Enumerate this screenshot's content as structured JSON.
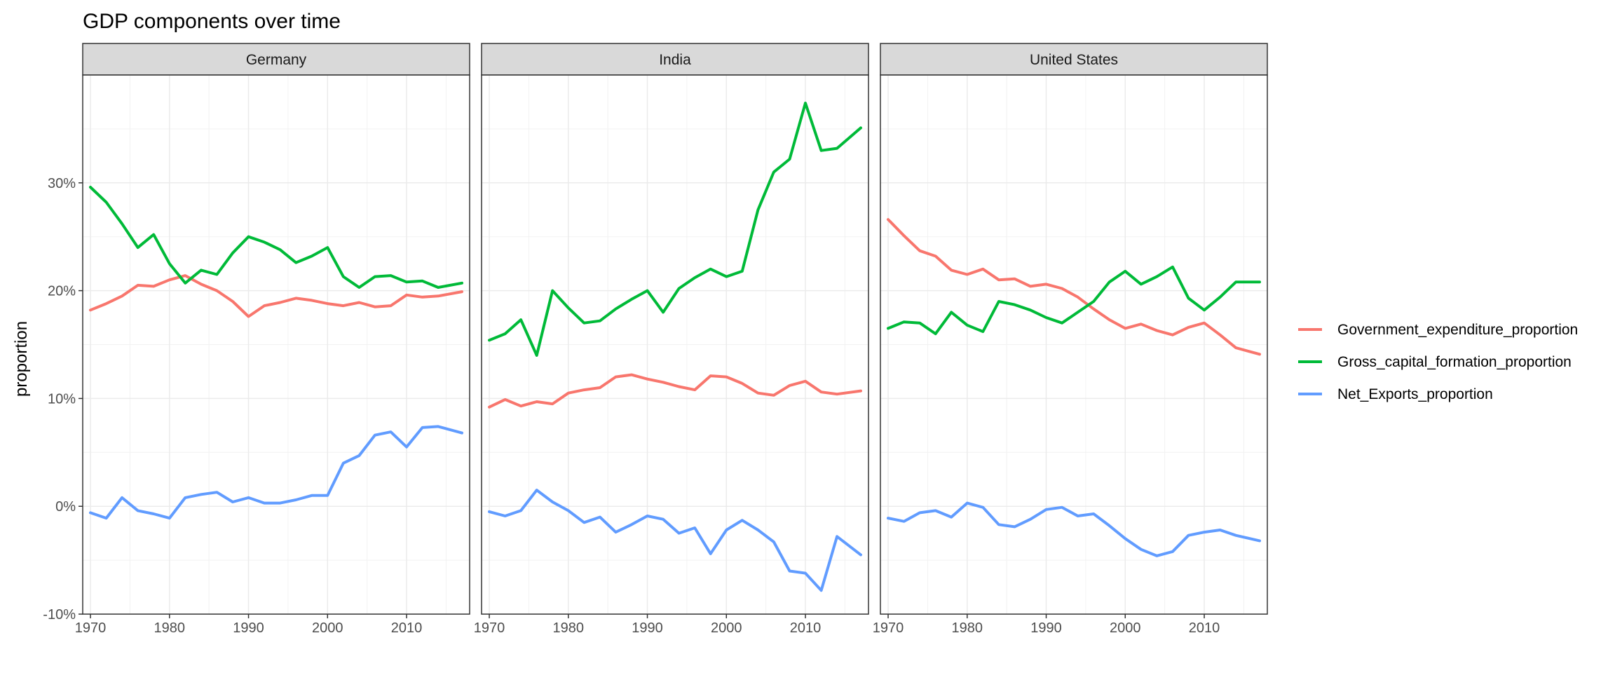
{
  "chart_data": {
    "type": "line",
    "title": "GDP components over time",
    "xlabel": "",
    "ylabel": "proportion",
    "xlim": [
      1970,
      2017
    ],
    "ylim": [
      -0.1,
      0.4
    ],
    "x_ticks": [
      1970,
      1980,
      1990,
      2000,
      2010
    ],
    "x_tick_labels": [
      "1970",
      "1980",
      "1990",
      "2000",
      "2010"
    ],
    "y_ticks": [
      -0.1,
      0,
      0.1,
      0.2,
      0.3
    ],
    "y_tick_labels": [
      "-10%",
      "0%",
      "10%",
      "20%",
      "30%"
    ],
    "grid": true,
    "legend_position": "right",
    "series_colors": {
      "Government_expenditure_proportion": "#F8766D",
      "Gross_capital_formation_proportion": "#00BA38",
      "Net_Exports_proportion": "#619CFF"
    },
    "legend": [
      {
        "name": "Government_expenditure_proportion",
        "color": "#F8766D"
      },
      {
        "name": "Gross_capital_formation_proportion",
        "color": "#00BA38"
      },
      {
        "name": "Net_Exports_proportion",
        "color": "#619CFF"
      }
    ],
    "facets": [
      {
        "name": "Germany",
        "series": [
          {
            "name": "Government_expenditure_proportion",
            "x": [
              1970,
              1972,
              1974,
              1976,
              1978,
              1980,
              1982,
              1984,
              1986,
              1988,
              1990,
              1992,
              1994,
              1996,
              1998,
              2000,
              2002,
              2004,
              2006,
              2008,
              2010,
              2012,
              2014,
              2017
            ],
            "values": [
              0.182,
              0.188,
              0.195,
              0.205,
              0.204,
              0.21,
              0.214,
              0.206,
              0.2,
              0.19,
              0.176,
              0.186,
              0.189,
              0.193,
              0.191,
              0.188,
              0.186,
              0.189,
              0.185,
              0.186,
              0.196,
              0.194,
              0.195,
              0.199
            ]
          },
          {
            "name": "Gross_capital_formation_proportion",
            "x": [
              1970,
              1972,
              1974,
              1976,
              1978,
              1980,
              1982,
              1984,
              1986,
              1988,
              1990,
              1992,
              1994,
              1996,
              1998,
              2000,
              2002,
              2004,
              2006,
              2008,
              2010,
              2012,
              2014,
              2017
            ],
            "values": [
              0.296,
              0.282,
              0.262,
              0.24,
              0.252,
              0.225,
              0.207,
              0.219,
              0.215,
              0.235,
              0.25,
              0.245,
              0.238,
              0.226,
              0.232,
              0.24,
              0.213,
              0.203,
              0.213,
              0.214,
              0.208,
              0.209,
              0.203,
              0.207
            ]
          },
          {
            "name": "Net_Exports_proportion",
            "x": [
              1970,
              1972,
              1974,
              1976,
              1978,
              1980,
              1982,
              1984,
              1986,
              1988,
              1990,
              1992,
              1994,
              1996,
              1998,
              2000,
              2002,
              2004,
              2006,
              2008,
              2010,
              2012,
              2014,
              2017
            ],
            "values": [
              -0.006,
              -0.011,
              0.008,
              -0.004,
              -0.007,
              -0.011,
              0.008,
              0.011,
              0.013,
              0.004,
              0.008,
              0.003,
              0.003,
              0.006,
              0.01,
              0.01,
              0.04,
              0.047,
              0.066,
              0.069,
              0.055,
              0.073,
              0.074,
              0.068
            ]
          }
        ]
      },
      {
        "name": "India",
        "series": [
          {
            "name": "Government_expenditure_proportion",
            "x": [
              1970,
              1972,
              1974,
              1976,
              1978,
              1980,
              1982,
              1984,
              1986,
              1988,
              1990,
              1992,
              1994,
              1996,
              1998,
              2000,
              2002,
              2004,
              2006,
              2008,
              2010,
              2012,
              2014,
              2017
            ],
            "values": [
              0.092,
              0.099,
              0.093,
              0.097,
              0.095,
              0.105,
              0.108,
              0.11,
              0.12,
              0.122,
              0.118,
              0.115,
              0.111,
              0.108,
              0.121,
              0.12,
              0.114,
              0.105,
              0.103,
              0.112,
              0.116,
              0.106,
              0.104,
              0.107
            ]
          },
          {
            "name": "Gross_capital_formation_proportion",
            "x": [
              1970,
              1972,
              1974,
              1976,
              1978,
              1980,
              1982,
              1984,
              1986,
              1988,
              1990,
              1992,
              1994,
              1996,
              1998,
              2000,
              2002,
              2004,
              2006,
              2008,
              2010,
              2012,
              2014,
              2017
            ],
            "values": [
              0.154,
              0.16,
              0.173,
              0.14,
              0.2,
              0.184,
              0.17,
              0.172,
              0.183,
              0.192,
              0.2,
              0.18,
              0.202,
              0.212,
              0.22,
              0.213,
              0.218,
              0.275,
              0.31,
              0.322,
              0.374,
              0.33,
              0.332,
              0.351
            ]
          },
          {
            "name": "Net_Exports_proportion",
            "x": [
              1970,
              1972,
              1974,
              1976,
              1978,
              1980,
              1982,
              1984,
              1986,
              1988,
              1990,
              1992,
              1994,
              1996,
              1998,
              2000,
              2002,
              2004,
              2006,
              2008,
              2010,
              2012,
              2014,
              2017
            ],
            "values": [
              -0.005,
              -0.009,
              -0.004,
              0.015,
              0.004,
              -0.004,
              -0.015,
              -0.01,
              -0.024,
              -0.017,
              -0.009,
              -0.012,
              -0.025,
              -0.02,
              -0.044,
              -0.022,
              -0.013,
              -0.022,
              -0.033,
              -0.06,
              -0.062,
              -0.078,
              -0.028,
              -0.045
            ]
          }
        ]
      },
      {
        "name": "United States",
        "series": [
          {
            "name": "Government_expenditure_proportion",
            "x": [
              1970,
              1972,
              1974,
              1976,
              1978,
              1980,
              1982,
              1984,
              1986,
              1988,
              1990,
              1992,
              1994,
              1996,
              1998,
              2000,
              2002,
              2004,
              2006,
              2008,
              2010,
              2012,
              2014,
              2017
            ],
            "values": [
              0.266,
              0.251,
              0.237,
              0.232,
              0.219,
              0.215,
              0.22,
              0.21,
              0.211,
              0.204,
              0.206,
              0.202,
              0.194,
              0.183,
              0.173,
              0.165,
              0.169,
              0.163,
              0.159,
              0.166,
              0.17,
              0.159,
              0.147,
              0.141
            ]
          },
          {
            "name": "Gross_capital_formation_proportion",
            "x": [
              1970,
              1972,
              1974,
              1976,
              1978,
              1980,
              1982,
              1984,
              1986,
              1988,
              1990,
              1992,
              1994,
              1996,
              1998,
              2000,
              2002,
              2004,
              2006,
              2008,
              2010,
              2012,
              2014,
              2017
            ],
            "values": [
              0.165,
              0.171,
              0.17,
              0.16,
              0.18,
              0.168,
              0.162,
              0.19,
              0.187,
              0.182,
              0.175,
              0.17,
              0.18,
              0.19,
              0.208,
              0.218,
              0.206,
              0.213,
              0.222,
              0.193,
              0.182,
              0.194,
              0.208,
              0.208
            ]
          },
          {
            "name": "Net_Exports_proportion",
            "x": [
              1970,
              1972,
              1974,
              1976,
              1978,
              1980,
              1982,
              1984,
              1986,
              1988,
              1990,
              1992,
              1994,
              1996,
              1998,
              2000,
              2002,
              2004,
              2006,
              2008,
              2010,
              2012,
              2014,
              2017
            ],
            "values": [
              -0.011,
              -0.014,
              -0.006,
              -0.004,
              -0.01,
              0.003,
              -0.001,
              -0.017,
              -0.019,
              -0.012,
              -0.003,
              -0.001,
              -0.009,
              -0.007,
              -0.018,
              -0.03,
              -0.04,
              -0.046,
              -0.042,
              -0.027,
              -0.024,
              -0.022,
              -0.027,
              -0.032
            ]
          }
        ]
      }
    ]
  }
}
